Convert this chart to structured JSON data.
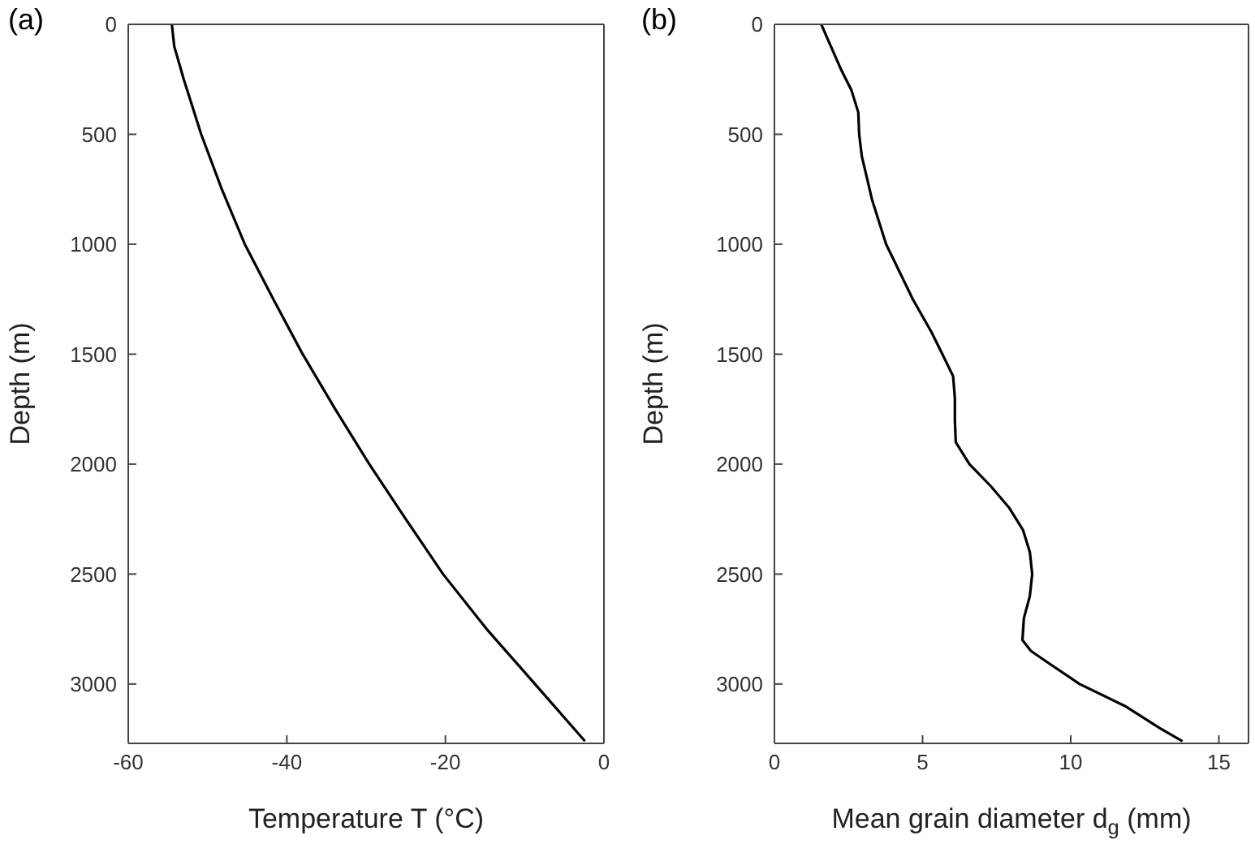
{
  "chart_data": [
    {
      "type": "line",
      "title": "(a)",
      "xlabel": "Temperature T (°C)",
      "ylabel": "Depth (m)",
      "xlim": [
        -60,
        0
      ],
      "xticks": [
        -60,
        -40,
        -20,
        0
      ],
      "ylim": [
        3270,
        0
      ],
      "yticks": [
        0,
        500,
        1000,
        1500,
        2000,
        2500,
        3000
      ],
      "legend": false,
      "series": [
        {
          "color": "#000000",
          "x": [
            -54.5,
            -54.2,
            -53.0,
            -50.8,
            -48.2,
            -45.3,
            -41.7,
            -38.0,
            -33.9,
            -29.6,
            -25.0,
            -20.3,
            -14.8,
            -8.7,
            -2.4
          ],
          "values": [
            0,
            100,
            250,
            500,
            750,
            1000,
            1250,
            1500,
            1750,
            2000,
            2250,
            2500,
            2750,
            3000,
            3260
          ]
        }
      ]
    },
    {
      "type": "line",
      "title": "(b)",
      "xlabel": "Mean grain diameter d$_{g}$ (mm)",
      "ylabel": "Depth (m)",
      "xlim": [
        0,
        16
      ],
      "xticks": [
        0,
        5,
        10,
        15
      ],
      "ylim": [
        3270,
        0
      ],
      "yticks": [
        0,
        500,
        1000,
        1500,
        2000,
        2500,
        3000
      ],
      "legend": false,
      "series": [
        {
          "color": "#000000",
          "x": [
            1.58,
            2.23,
            2.6,
            2.83,
            2.86,
            2.95,
            3.3,
            3.77,
            4.13,
            4.67,
            5.3,
            5.67,
            6.03,
            6.09,
            6.09,
            6.12,
            6.58,
            7.3,
            7.93,
            8.39,
            8.62,
            8.7,
            8.62,
            8.42,
            8.37,
            8.66,
            9.2,
            10.3,
            11.83,
            13.0,
            13.77
          ],
          "values": [
            0,
            200,
            300,
            400,
            500,
            600,
            800,
            1000,
            1100,
            1250,
            1400,
            1500,
            1600,
            1700,
            1800,
            1900,
            2000,
            2100,
            2200,
            2300,
            2400,
            2500,
            2600,
            2700,
            2800,
            2850,
            2900,
            3000,
            3100,
            3200,
            3260
          ]
        }
      ]
    }
  ]
}
